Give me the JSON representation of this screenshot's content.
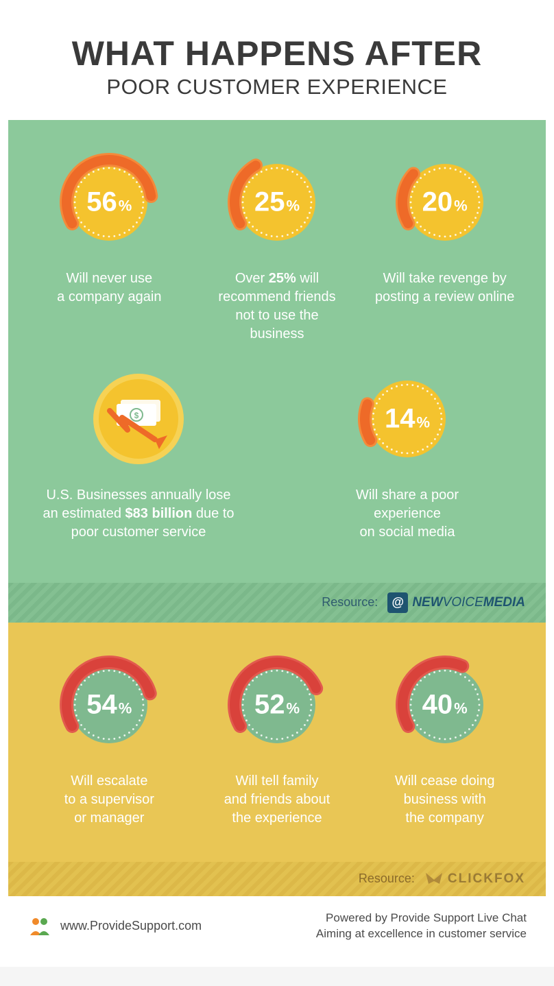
{
  "header": {
    "title_line1": "WHAT HAPPENS AFTER",
    "title_line2": "POOR CUSTOMER EXPERIENCE",
    "text_color": "#3a3a3a",
    "bg": "#ffffff"
  },
  "colors": {
    "green_bg": "#8cc99b",
    "yellow_bg": "#e9c655",
    "donut_fill_top": "#f4c32e",
    "arc_orange": "#ee6a28",
    "arc_orange_light": "#f48a3a",
    "donut_fill_bottom": "#7fb98f",
    "arc_red": "#d9423b",
    "arc_red_light": "#e25a4e",
    "white": "#ffffff"
  },
  "top_stats": [
    {
      "value": 56,
      "percent_of_circle": 56,
      "caption_html": "Will never use<br>a company again"
    },
    {
      "value": 25,
      "percent_of_circle": 25,
      "caption_html": "Over <b>25%</b> will<br>recommend friends<br>not to use the<br>business"
    },
    {
      "value": 20,
      "percent_of_circle": 20,
      "caption_html": "Will take revenge by<br>posting a review online"
    }
  ],
  "top_row2": {
    "money_caption_html": "U.S. Businesses annually lose<br>an estimated <b>$83 billion</b> due to<br>poor customer service",
    "stat": {
      "value": 14,
      "percent_of_circle": 14,
      "caption_html": "Will share a poor experience<br>on social media"
    }
  },
  "resource_top": {
    "label": "Resource:",
    "brand_bold": "NEW",
    "brand_thin": "VOICE",
    "brand_end": "MEDIA"
  },
  "bottom_stats": [
    {
      "value": 54,
      "percent_of_circle": 54,
      "caption_html": "Will escalate<br>to a supervisor<br>or manager"
    },
    {
      "value": 52,
      "percent_of_circle": 52,
      "caption_html": "Will tell family<br>and friends about<br>the experience"
    },
    {
      "value": 40,
      "percent_of_circle": 40,
      "caption_html": "Will cease doing<br>business with<br>the company"
    }
  ],
  "resource_bottom": {
    "label": "Resource:",
    "brand": "CLICKFOX"
  },
  "footer": {
    "url": "www.ProvideSupport.com",
    "line1": "Powered by Provide Support Live Chat",
    "line2": "Aiming at excellence in customer service"
  }
}
